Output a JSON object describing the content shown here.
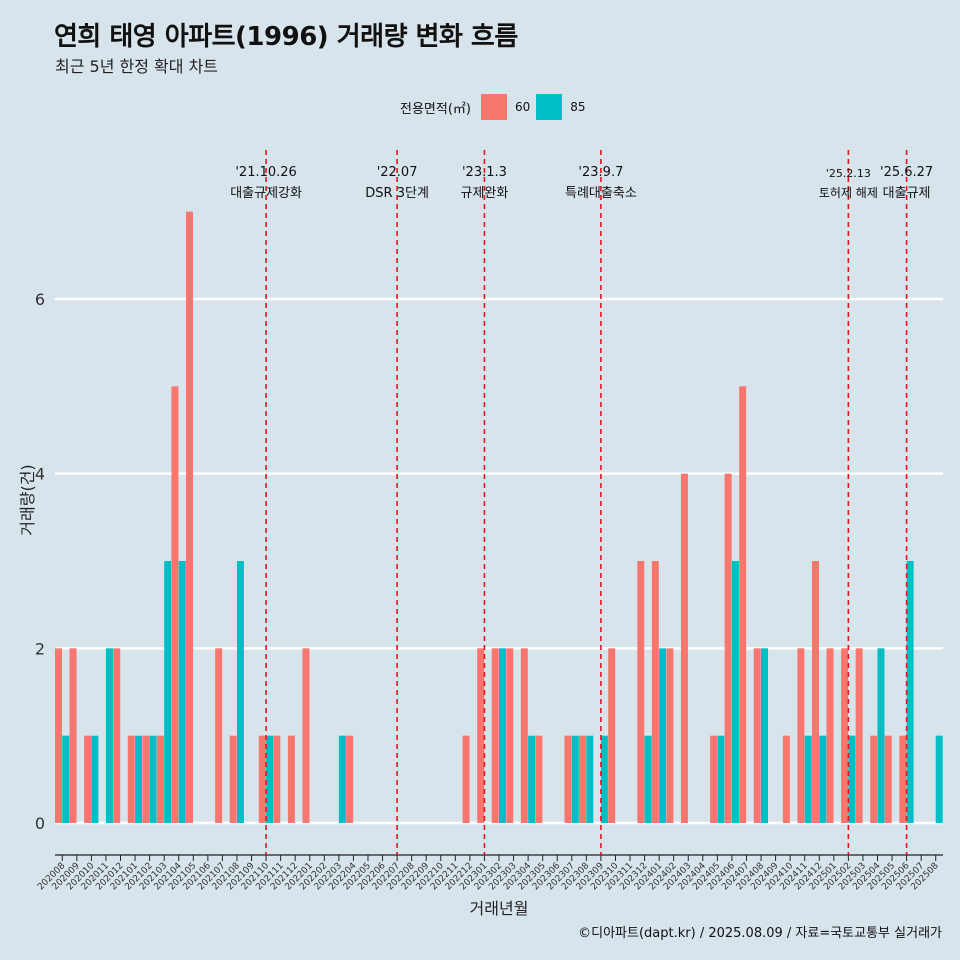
{
  "header": {
    "title": "연희 태영 아파트(1996) 거래량 변화 흐름",
    "subtitle": "최근 5년 한정 확대 차트"
  },
  "legend": {
    "title": "전용면적(㎡)",
    "items": [
      {
        "label": "60",
        "color": "#f8766d"
      },
      {
        "label": "85",
        "color": "#00bfc4"
      }
    ]
  },
  "caption": "©디아파트(dapt.kr) / 2025.08.09 / 자료=국토교통부 실거래가",
  "chart_data": {
    "type": "bar",
    "xlabel": "거래년월",
    "ylabel": "거래량(건)",
    "ylim": [
      0,
      7
    ],
    "yticks": [
      0,
      2,
      4,
      6
    ],
    "categories": [
      "202008",
      "202009",
      "202010",
      "202011",
      "202012",
      "202101",
      "202102",
      "202103",
      "202104",
      "202105",
      "202106",
      "202107",
      "202108",
      "202109",
      "202110",
      "202111",
      "202112",
      "202201",
      "202202",
      "202203",
      "202204",
      "202205",
      "202206",
      "202207",
      "202208",
      "202209",
      "202210",
      "202211",
      "202212",
      "202301",
      "202302",
      "202303",
      "202304",
      "202305",
      "202306",
      "202307",
      "202308",
      "202309",
      "202310",
      "202311",
      "202312",
      "202401",
      "202402",
      "202403",
      "202404",
      "202405",
      "202406",
      "202407",
      "202408",
      "202409",
      "202410",
      "202411",
      "202412",
      "202501",
      "202502",
      "202503",
      "202504",
      "202505",
      "202506",
      "202507",
      "202508"
    ],
    "series": [
      {
        "name": "60",
        "color": "#f8766d",
        "values": [
          2,
          2,
          1,
          0,
          2,
          1,
          1,
          1,
          5,
          7,
          0,
          2,
          1,
          0,
          1,
          1,
          1,
          2,
          0,
          0,
          1,
          0,
          0,
          0,
          0,
          0,
          0,
          0,
          1,
          2,
          2,
          2,
          2,
          1,
          0,
          1,
          1,
          0,
          2,
          0,
          3,
          3,
          2,
          4,
          0,
          1,
          4,
          5,
          2,
          0,
          1,
          2,
          3,
          2,
          2,
          2,
          1,
          1,
          1,
          0,
          0
        ]
      },
      {
        "name": "85",
        "color": "#00bfc4",
        "values": [
          1,
          0,
          1,
          2,
          0,
          1,
          1,
          3,
          3,
          0,
          0,
          0,
          3,
          0,
          1,
          0,
          0,
          0,
          0,
          1,
          0,
          0,
          0,
          0,
          0,
          0,
          0,
          0,
          0,
          0,
          2,
          0,
          1,
          0,
          0,
          1,
          1,
          1,
          0,
          0,
          1,
          2,
          0,
          0,
          0,
          1,
          3,
          0,
          2,
          0,
          0,
          1,
          1,
          0,
          1,
          0,
          2,
          0,
          3,
          0,
          1
        ]
      }
    ],
    "events": [
      {
        "date": "'21.10.26",
        "label": "대출규제강화",
        "index": 14
      },
      {
        "date": "'22.07",
        "label": "DSR 3단계",
        "index": 23
      },
      {
        "date": "'23.1.3",
        "label": "규제완화",
        "index": 29
      },
      {
        "date": "'23.9.7",
        "label": "특례대출축소",
        "index": 37
      },
      {
        "date": "'25.2.13",
        "label": "토허제 해제",
        "index": 54
      },
      {
        "date": "'25.6.27",
        "label": "대출규제",
        "index": 58
      }
    ]
  }
}
